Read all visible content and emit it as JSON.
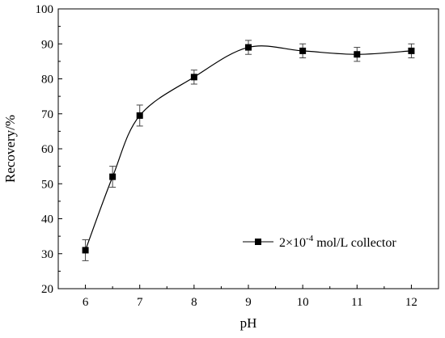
{
  "chart_data": {
    "type": "line",
    "title": "",
    "xlabel": "pH",
    "ylabel": "Recovery/%",
    "xlim": [
      5.5,
      12.5
    ],
    "ylim": [
      20,
      100
    ],
    "x_ticks": [
      6,
      7,
      8,
      9,
      10,
      11,
      12
    ],
    "y_ticks": [
      20,
      30,
      40,
      50,
      60,
      70,
      80,
      90,
      100
    ],
    "grid": false,
    "legend": {
      "placement": "bottom-right"
    },
    "series": [
      {
        "name_parts": {
          "base": "2×10",
          "exponent": "-4",
          "rest": " mol/L collector"
        },
        "marker": "square",
        "color": "#000000",
        "smooth": true,
        "x": [
          6,
          6.5,
          7,
          8,
          9,
          10,
          11,
          12
        ],
        "y": [
          31,
          52,
          69.5,
          80.5,
          89,
          88,
          87,
          88
        ],
        "error": [
          3,
          3,
          3,
          2,
          2,
          2,
          2,
          2
        ]
      }
    ]
  }
}
